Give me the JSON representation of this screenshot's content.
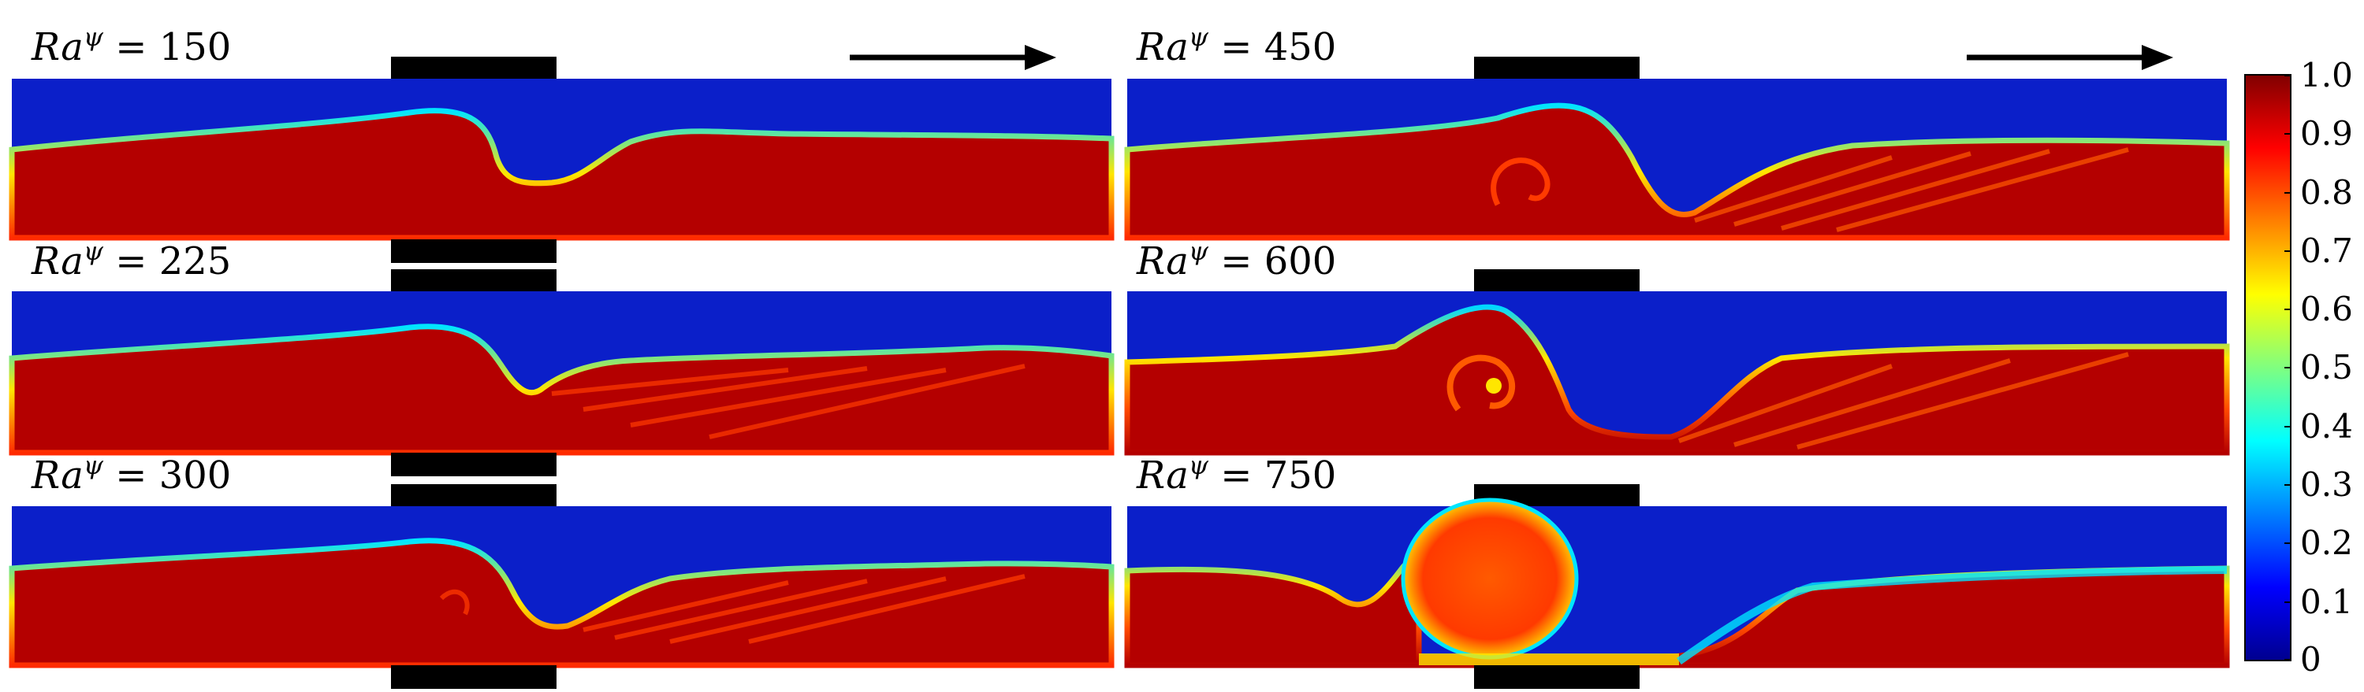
{
  "figure": {
    "panels": [
      {
        "label_prefix": "Ra",
        "label_sup": "ψ",
        "label_eq": " = ",
        "value": "150"
      },
      {
        "label_prefix": "Ra",
        "label_sup": "ψ",
        "label_eq": " = ",
        "value": "225"
      },
      {
        "label_prefix": "Ra",
        "label_sup": "ψ",
        "label_eq": " = ",
        "value": "300"
      },
      {
        "label_prefix": "Ra",
        "label_sup": "ψ",
        "label_eq": " = ",
        "value": "450"
      },
      {
        "label_prefix": "Ra",
        "label_sup": "ψ",
        "label_eq": " = ",
        "value": "600"
      },
      {
        "label_prefix": "Ra",
        "label_sup": "ψ",
        "label_eq": " = ",
        "value": "750"
      }
    ],
    "flow_arrow": "right",
    "colormap": {
      "name": "jet",
      "colors": [
        "#00008F",
        "#0000FF",
        "#00FFFF",
        "#FFFF00",
        "#FF0000",
        "#800000"
      ],
      "ticks": [
        "1.0",
        "0.9",
        "0.8",
        "0.7",
        "0.6",
        "0.5",
        "0.4",
        "0.3",
        "0.2",
        "0.1",
        "0"
      ]
    },
    "field_colors": {
      "low": "#0b1fc9",
      "high": "#b40000",
      "mid_red": "#ff2a00",
      "cyan": "#00e5ff",
      "yellow": "#ffe600"
    }
  }
}
